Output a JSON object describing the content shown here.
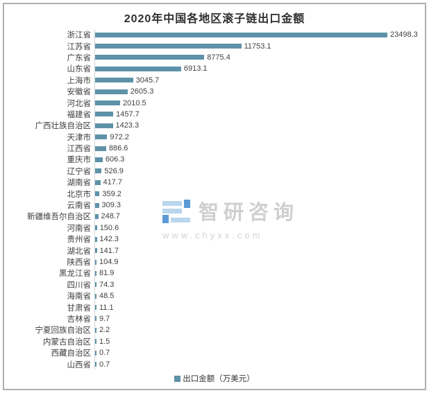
{
  "title": "2020年中国各地区滚子链出口金额",
  "chart_data": {
    "type": "bar",
    "orientation": "horizontal",
    "title": "2020年中国各地区滚子链出口金额",
    "categories": [
      "浙江省",
      "江苏省",
      "广东省",
      "山东省",
      "上海市",
      "安徽省",
      "河北省",
      "福建省",
      "广西壮族自治区",
      "天津市",
      "江西省",
      "重庆市",
      "辽宁省",
      "湖南省",
      "北京市",
      "云南省",
      "新疆维吾尔自治区",
      "河南省",
      "贵州省",
      "湖北省",
      "陕西省",
      "黑龙江省",
      "四川省",
      "海南省",
      "甘肃省",
      "吉林省",
      "宁夏回族自治区",
      "内蒙古自治区",
      "西藏自治区",
      "山西省"
    ],
    "values": [
      23498.3,
      11753.1,
      8775.4,
      6913.1,
      3045.7,
      2605.3,
      2010.5,
      1457.7,
      1423.3,
      972.2,
      886.6,
      606.3,
      526.9,
      417.7,
      359.2,
      309.3,
      248.7,
      150.6,
      142.3,
      141.7,
      104.9,
      81.9,
      74.3,
      48.5,
      11.1,
      9.7,
      2.2,
      1.5,
      0.7,
      0.7
    ],
    "xlabel": "",
    "ylabel": "",
    "xlim": [
      0,
      23498.3
    ],
    "grid": false,
    "value_labels_shown": true,
    "legend_position": "bottom",
    "legend": "出口金额（万美元）"
  },
  "legend": {
    "label": "出口金额（万美元）"
  },
  "watermark": {
    "brand": "智研咨询",
    "url": "www.chyxx.com"
  },
  "colors": {
    "bar": "#5e92a8",
    "title_text": "#2e2e2e",
    "label_text": "#3d3d3d",
    "value_text": "#404040",
    "frame_border": "#aeaeae",
    "axis_line": "#d4d4d4",
    "watermark_text": "#cfcfcf",
    "watermark_logo_light": "#b9d6ec",
    "watermark_logo_dark": "#5b9bd5"
  }
}
